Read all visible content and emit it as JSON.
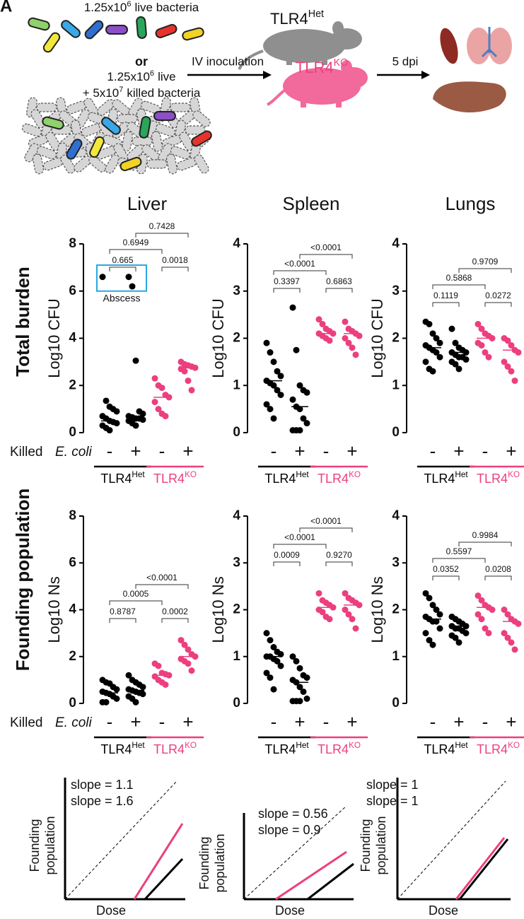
{
  "diagram": {
    "panel_label": "A",
    "live_base": "1.25x10",
    "live_exp": "6",
    "live_text": "live bacteria",
    "or": "or",
    "mix_base": "1.25x10",
    "mix_exp": "6",
    "mix_text": "live",
    "killed_base": "+ 5x10",
    "killed_exp": "7",
    "killed_text": "killed bacteria",
    "route": "IV inoculation",
    "het_name": "TLR4",
    "het_sup": "Het",
    "ko_name": "TLR4",
    "ko_sup": "KO",
    "time": "5 dpi"
  },
  "rows": [
    "Total burden",
    "Founding population"
  ],
  "chart_data": [
    {
      "type": "dot",
      "title": "Liver",
      "ylabel": "Log10 CFU",
      "ylim": [
        0,
        8
      ],
      "yticks": [
        0,
        2,
        4,
        6,
        8
      ],
      "categories": [
        "-",
        "+",
        "-",
        "+"
      ],
      "xlabel_prefix": "Killed",
      "xlabel_italic": "E. coli",
      "groups": [
        {
          "name": "TLR4",
          "sup": "Het",
          "color": "#000000"
        },
        {
          "name": "TLR4",
          "sup": "KO",
          "color": "#ec3f7f"
        }
      ],
      "points": [
        [
          6.6,
          1.35,
          1.1,
          1.0,
          0.9,
          0.7,
          0.6,
          0.5,
          0.45,
          0.4,
          0.3,
          0.2,
          0.1
        ],
        [
          6.6,
          6.2,
          3.05,
          0.9,
          0.8,
          0.7,
          0.65,
          0.6,
          0.6,
          0.55,
          0.5,
          0.4,
          0.3
        ],
        [
          2.3,
          2.0,
          1.9,
          1.6,
          1.5,
          1.3,
          1.0,
          0.8,
          0.7
        ],
        [
          3.0,
          2.9,
          2.85,
          2.8,
          2.75,
          2.7,
          2.6,
          2.2,
          1.8
        ]
      ],
      "medians": [
        0.5,
        0.6,
        1.5,
        2.75
      ],
      "comparisons": [
        "0.665",
        "0.0018",
        "0.6949",
        "0.7428"
      ],
      "annotation": "Abscess"
    },
    {
      "type": "dot",
      "title": "Spleen",
      "ylabel": "Log10 CFU",
      "ylim": [
        0,
        4
      ],
      "yticks": [
        0,
        1,
        2,
        3,
        4
      ],
      "categories": [
        "-",
        "+",
        "-",
        "+"
      ],
      "groups": [
        {
          "name": "TLR4",
          "sup": "Het",
          "color": "#000000"
        },
        {
          "name": "TLR4",
          "sup": "KO",
          "color": "#ec3f7f"
        }
      ],
      "points": [
        [
          1.9,
          1.7,
          1.5,
          1.3,
          1.2,
          1.1,
          1.05,
          1.0,
          0.9,
          0.8,
          0.6,
          0.5,
          0.3
        ],
        [
          2.65,
          1.75,
          1.0,
          0.9,
          0.85,
          0.7,
          0.55,
          0.5,
          0.3,
          0.2,
          0.05,
          0.05,
          0.05
        ],
        [
          2.4,
          2.3,
          2.2,
          2.15,
          2.1,
          2.1,
          2.05,
          2.0,
          1.95
        ],
        [
          2.35,
          2.2,
          2.15,
          2.1,
          2.05,
          2.0,
          1.9,
          1.8,
          1.65
        ]
      ],
      "medians": [
        1.1,
        0.55,
        2.1,
        2.1
      ],
      "comparisons": [
        "0.3397",
        "0.6863",
        "<0.0001",
        "<0.0001"
      ]
    },
    {
      "type": "dot",
      "title": "Lungs",
      "ylabel": "Log10 CFU",
      "ylim": [
        0,
        4
      ],
      "yticks": [
        0,
        1,
        2,
        3,
        4
      ],
      "categories": [
        "-",
        "+",
        "-",
        "+"
      ],
      "groups": [
        {
          "name": "TLR4",
          "sup": "Het",
          "color": "#000000"
        },
        {
          "name": "TLR4",
          "sup": "KO",
          "color": "#ec3f7f"
        }
      ],
      "points": [
        [
          2.35,
          2.3,
          2.1,
          2.0,
          1.9,
          1.85,
          1.8,
          1.75,
          1.7,
          1.6,
          1.5,
          1.35,
          1.3
        ],
        [
          2.2,
          1.9,
          1.8,
          1.75,
          1.7,
          1.7,
          1.65,
          1.6,
          1.6,
          1.55,
          1.5,
          1.45,
          1.35
        ],
        [
          2.3,
          2.2,
          2.1,
          2.05,
          2.0,
          1.9,
          1.85,
          1.7,
          1.6
        ],
        [
          2.0,
          1.95,
          1.85,
          1.75,
          1.7,
          1.5,
          1.4,
          1.3,
          1.1
        ]
      ],
      "medians": [
        1.8,
        1.7,
        2.0,
        1.75
      ],
      "comparisons": [
        "0.1119",
        "0.0272",
        "0.5868",
        "0.9709"
      ]
    },
    {
      "type": "dot",
      "ylabel": "Log10 Ns",
      "ylim": [
        0,
        8
      ],
      "yticks": [
        0,
        2,
        4,
        6,
        8
      ],
      "categories": [
        "-",
        "+",
        "-",
        "+"
      ],
      "xlabel_prefix": "Killed",
      "xlabel_italic": "E. coli",
      "groups": [
        {
          "name": "TLR4",
          "sup": "Het",
          "color": "#000000"
        },
        {
          "name": "TLR4",
          "sup": "KO",
          "color": "#ec3f7f"
        }
      ],
      "points": [
        [
          1.0,
          0.9,
          0.85,
          0.7,
          0.6,
          0.5,
          0.45,
          0.4,
          0.3,
          0.2,
          0.05,
          0.05
        ],
        [
          1.2,
          1.0,
          0.9,
          0.8,
          0.7,
          0.6,
          0.55,
          0.5,
          0.45,
          0.4,
          0.3,
          0.2,
          0.05
        ],
        [
          1.7,
          1.6,
          1.3,
          1.25,
          1.2,
          1.15,
          1.0,
          0.9,
          0.8
        ],
        [
          2.7,
          2.5,
          2.3,
          2.1,
          2.0,
          1.9,
          1.8,
          1.7,
          1.4
        ]
      ],
      "medians": [
        0.45,
        0.55,
        1.2,
        2.0
      ],
      "comparisons": [
        "0.8787",
        "0.0002",
        "0.0005",
        "<0.0001"
      ]
    },
    {
      "type": "dot",
      "ylabel": "Log10 Ns",
      "ylim": [
        0,
        4
      ],
      "yticks": [
        0,
        1,
        2,
        3,
        4
      ],
      "categories": [
        "-",
        "+",
        "-",
        "+"
      ],
      "groups": [
        {
          "name": "TLR4",
          "sup": "Het",
          "color": "#000000"
        },
        {
          "name": "TLR4",
          "sup": "KO",
          "color": "#ec3f7f"
        }
      ],
      "points": [
        [
          1.5,
          1.35,
          1.2,
          1.1,
          1.05,
          1.0,
          1.0,
          0.95,
          0.9,
          0.8,
          0.65,
          0.55,
          0.3
        ],
        [
          1.0,
          0.9,
          0.75,
          0.6,
          0.55,
          0.5,
          0.45,
          0.35,
          0.25,
          0.1,
          0.05,
          0.05,
          0.05
        ],
        [
          2.35,
          2.2,
          2.15,
          2.1,
          2.05,
          2.0,
          1.95,
          1.85,
          1.8
        ],
        [
          2.35,
          2.25,
          2.2,
          2.15,
          2.1,
          2.0,
          1.9,
          1.8,
          1.6
        ]
      ],
      "medians": [
        1.0,
        0.45,
        2.05,
        2.1
      ],
      "comparisons": [
        "0.0009",
        "0.9270",
        "<0.0001",
        "<0.0001"
      ]
    },
    {
      "type": "dot",
      "ylabel": "Log10 Ns",
      "ylim": [
        0,
        4
      ],
      "yticks": [
        0,
        1,
        2,
        3,
        4
      ],
      "categories": [
        "-",
        "+",
        "-",
        "+"
      ],
      "groups": [
        {
          "name": "TLR4",
          "sup": "Het",
          "color": "#000000"
        },
        {
          "name": "TLR4",
          "sup": "KO",
          "color": "#ec3f7f"
        }
      ],
      "points": [
        [
          2.35,
          2.25,
          2.1,
          2.0,
          1.9,
          1.85,
          1.8,
          1.75,
          1.75,
          1.6,
          1.5,
          1.35,
          1.25
        ],
        [
          1.85,
          1.8,
          1.75,
          1.7,
          1.65,
          1.65,
          1.6,
          1.6,
          1.55,
          1.5,
          1.45,
          1.4,
          1.3
        ],
        [
          2.3,
          2.2,
          2.1,
          2.05,
          2.0,
          1.9,
          1.8,
          1.6,
          1.5
        ],
        [
          2.0,
          1.9,
          1.8,
          1.75,
          1.7,
          1.5,
          1.4,
          1.3,
          1.15
        ]
      ],
      "medians": [
        1.8,
        1.65,
        2.05,
        1.75
      ],
      "comparisons": [
        "0.0352",
        "0.0208",
        "0.5597",
        "0.9984"
      ]
    },
    {
      "type": "schematic",
      "xlabel": "Dose",
      "ylabel": [
        "Founding",
        "population"
      ],
      "labels": [
        {
          "text": "slope = 1.1",
          "color": "#000000"
        },
        {
          "text": "slope = 1.6",
          "color": "#ec3f7f"
        }
      ]
    },
    {
      "type": "schematic",
      "xlabel": "Dose",
      "ylabel": [
        "Founding",
        "population"
      ],
      "labels": [
        {
          "text": "slope = 0.56",
          "color": "#000000"
        },
        {
          "text": "slope = 0.9",
          "color": "#ec3f7f"
        }
      ]
    },
    {
      "type": "schematic",
      "xlabel": "Dose",
      "ylabel": [
        "Founding",
        "population"
      ],
      "labels": [
        {
          "text": "slope = 1",
          "color": "#000000"
        },
        {
          "text": "slope = 1",
          "color": "#ec3f7f"
        }
      ]
    }
  ]
}
